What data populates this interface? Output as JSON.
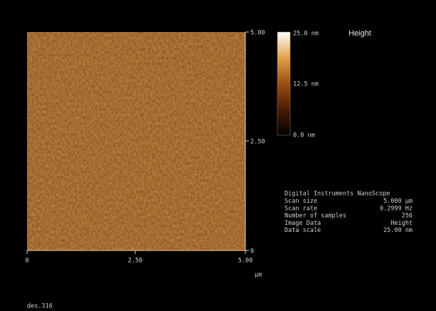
{
  "image": {
    "y_ticks": [
      "5.00",
      "2.50",
      "0"
    ],
    "x_ticks": [
      "0",
      "2.50",
      "5.00"
    ],
    "x_unit": "µm"
  },
  "colorbar": {
    "title": "Height",
    "labels": [
      "25.0 nm",
      "12.5 nm",
      "0.0 nm"
    ]
  },
  "info": {
    "header": "Digital Instruments NanoScope",
    "rows": [
      [
        "Scan size",
        "5.000 µm"
      ],
      [
        "Scan rate",
        "0.2999 Hz"
      ],
      [
        "Number of samples",
        "256"
      ],
      [
        "Image Data",
        "Height"
      ],
      [
        "Data scale",
        "25.00 nm"
      ]
    ]
  },
  "footer": "des.316"
}
